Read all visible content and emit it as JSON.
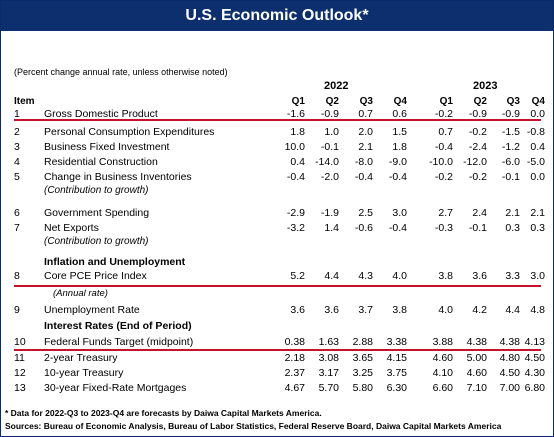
{
  "title": "U.S. Economic Outlook*",
  "note": "(Percent change annual rate, unless otherwise noted)",
  "year_2022": "2022",
  "year_2023": "2023",
  "item_header": "Item",
  "quarters": [
    "Q1",
    "Q2",
    "Q3",
    "Q4",
    "Q1",
    "Q2",
    "Q3",
    "Q4"
  ],
  "rows": [
    {
      "num": "1",
      "label": "Gross Domestic Product",
      "vals": [
        "-1.6",
        "-0.9",
        "0.7",
        "0.6",
        "-0.2",
        "-0.9",
        "-0.9",
        "0.0"
      ]
    },
    {
      "num": "2",
      "label": "Personal Consumption Expenditures",
      "vals": [
        "1.8",
        "1.0",
        "2.0",
        "1.5",
        "0.7",
        "-0.2",
        "-1.5",
        "-0.8"
      ]
    },
    {
      "num": "3",
      "label": "Business Fixed Investment",
      "vals": [
        "10.0",
        "-0.1",
        "2.1",
        "1.8",
        "-0.4",
        "-2.4",
        "-1.2",
        "0.4"
      ]
    },
    {
      "num": "4",
      "label": "Residential Construction",
      "vals": [
        "0.4",
        "-14.0",
        "-8.0",
        "-9.0",
        "-10.0",
        "-12.0",
        "-6.0",
        "-5.0"
      ]
    },
    {
      "num": "5",
      "label": "Change in  Business Inventories",
      "sub": "(Contribution to growth)",
      "vals": [
        "-0.4",
        "-2.0",
        "-0.4",
        "-0.4",
        "-0.2",
        "-0.2",
        "-0.1",
        "0.0"
      ]
    },
    {
      "num": "6",
      "label": "Government Spending",
      "vals": [
        "-2.9",
        "-1.9",
        "2.5",
        "3.0",
        "2.7",
        "2.4",
        "2.1",
        "2.1"
      ]
    },
    {
      "num": "7",
      "label": "Net Exports",
      "sub": "(Contribution to growth)",
      "vals": [
        "-3.2",
        "1.4",
        "-0.6",
        "-0.4",
        "-0.3",
        "-0.1",
        "0.3",
        "0.3"
      ]
    },
    {
      "num": "8",
      "label": "Core PCE Price Index",
      "vals": [
        "5.2",
        "4.4",
        "4.3",
        "4.0",
        "3.8",
        "3.6",
        "3.3",
        "3.0"
      ]
    },
    {
      "num": "9",
      "label": "Unemployment Rate",
      "vals": [
        "3.6",
        "3.6",
        "3.7",
        "3.8",
        "4.0",
        "4.2",
        "4.4",
        "4.8"
      ]
    },
    {
      "num": "10",
      "label": "Federal Funds Target (midpoint)",
      "vals": [
        "0.38",
        "1.63",
        "2.88",
        "3.38",
        "3.88",
        "4.38",
        "4.38",
        "4.13"
      ]
    },
    {
      "num": "11",
      "label": "2-year Treasury",
      "vals": [
        "2.18",
        "3.08",
        "3.65",
        "4.15",
        "4.60",
        "5.00",
        "4.80",
        "4.50"
      ]
    },
    {
      "num": "12",
      "label": "10-year Treasury",
      "vals": [
        "2.37",
        "3.17",
        "3.25",
        "3.75",
        "4.10",
        "4.60",
        "4.50",
        "4.30"
      ]
    },
    {
      "num": "13",
      "label": "30-year Fixed-Rate Mortgages",
      "vals": [
        "4.67",
        "5.70",
        "5.80",
        "6.30",
        "6.60",
        "7.10",
        "7.00",
        "6.80"
      ]
    }
  ],
  "section_inflation": "Inflation and Unemployment",
  "annual_rate": "(Annual rate)",
  "section_rates": "Interest Rates (End of Period)",
  "footnote": "* Data for 2022-Q3 to 2023-Q4 are forecasts by Daiwa Capital Markets America.",
  "sources": "Sources: Bureau of Economic Analysis, Bureau of Labor Statistics, Federal Reserve Board, Daiwa Capital Markets America"
}
